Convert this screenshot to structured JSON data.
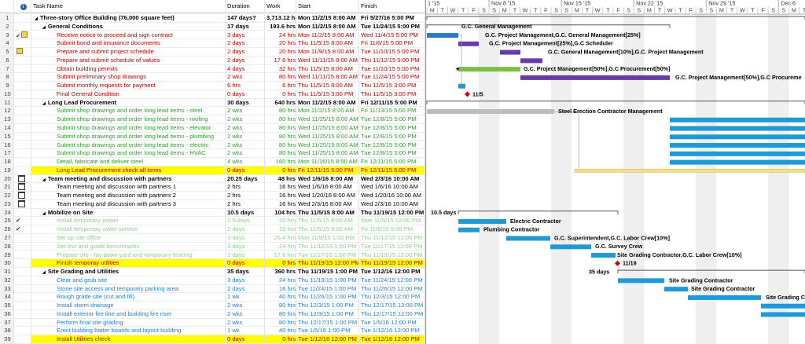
{
  "header": {
    "columns": [
      "Task Name",
      "Duration",
      "Work",
      "Start",
      "Finish"
    ]
  },
  "timescale": {
    "weeks": [
      "1 '15",
      "Nov 8 '15",
      "Nov 15 '15",
      "Nov 22 '15",
      "Nov 29 '15",
      "Dec 6"
    ],
    "days": [
      "M",
      "T",
      "W",
      "T",
      "F",
      "S",
      "S"
    ]
  },
  "rows": [
    {
      "id": "1",
      "name": "Three-story Office Building (76,000 square feet)",
      "duration": "147 days?",
      "work": "3,713.12 hrs",
      "start": "Mon 11/2/15 8:00 AM",
      "finish": "Fri 5/27/16 5:00 PM"
    },
    {
      "id": "2",
      "name": "General Conditions",
      "duration": "17 days",
      "work": "193.6 hrs",
      "start": "Mon 11/2/15 8:00 AM",
      "finish": "Tue 11/24/15 5:00 PM",
      "bar_label": "G.C. General Management"
    },
    {
      "id": "3",
      "name": "Receive notice to proceed and sign contract",
      "duration": "3 days",
      "work": "24 hrs",
      "start": "Mon 11/2/15 8:00 AM",
      "finish": "Wed 11/4/15 5:00 PM",
      "bar_label": "G.C. Project Management,G.C. General  Management[25%]"
    },
    {
      "id": "4",
      "name": "Submit bond and insurance documents",
      "duration": "2 days",
      "work": "20 hrs",
      "start": "Thu 11/5/15 8:00 AM",
      "finish": "Fri 11/6/15 5:00 PM",
      "bar_label": "G.C. Project Management[25%],G.C Scheduler"
    },
    {
      "id": "5",
      "name": "Prepare and submit project schedule",
      "duration": "2 days",
      "work": "20 hrs",
      "start": "Mon 11/9/15 8:00 AM",
      "finish": "Tue 11/10/15 5:00 PM",
      "bar_label": "G.C. General Management[10%],G.C. Project Management"
    },
    {
      "id": "6",
      "name": "Prepare and submit schedule of values",
      "duration": "2 days",
      "work": "17.6 hrs",
      "start": "Wed 11/11/15 8:00 AM",
      "finish": "Thu 11/12/15 5:00 PM"
    },
    {
      "id": "7",
      "name": "Obtain building permits",
      "duration": "4 days",
      "work": "32 hrs",
      "start": "Thu 11/5/15 8:00 AM",
      "finish": "Tue 11/10/15 5:00 PM",
      "bar_label": "G.C. Project Management[50%],G.C Procurement[50%]"
    },
    {
      "id": "8",
      "name": "Submit preliminary shop drawings",
      "duration": "2 wks",
      "work": "80 hrs",
      "start": "Wed 11/11/15 8:00 AM",
      "finish": "Tue 11/24/15 5:00 PM",
      "bar_label": "G.C. Project Management[50%],G.C Procureme"
    },
    {
      "id": "9",
      "name": "Submit monthly requests for payment",
      "duration": "6 hrs",
      "work": "6 hrs",
      "start": "Thu 11/5/15 8:00 AM",
      "finish": "Thu 11/5/15 3:00 PM"
    },
    {
      "id": "10",
      "name": "Final General Condition",
      "duration": "0 days",
      "work": "0 hrs",
      "start": "Thu 11/5/15 3:00 PM",
      "finish": "Thu 11/5/15 3:00 PM",
      "bar_label": "11/5"
    },
    {
      "id": "11",
      "name": "Long Lead Procurement",
      "duration": "30 days",
      "work": "640 hrs",
      "start": "Mon 11/2/15 8:00 AM",
      "finish": "Fri 12/11/15 5:00 PM"
    },
    {
      "id": "12",
      "name": "Submit shop drawings and order long lead items - steel",
      "duration": "2 wks",
      "work": "80 hrs",
      "start": "Mon 11/2/15 8:00 AM",
      "finish": "Fri 11/13/15 5:00 PM",
      "bar_label": "Steel Erection Contractor Management"
    },
    {
      "id": "13",
      "name": "Submit shop drawings and order long lead items - roofing",
      "duration": "2 wks",
      "work": "80 hrs",
      "start": "Wed 11/25/15 8:00 AM",
      "finish": "Tue 12/8/15 5:00 PM"
    },
    {
      "id": "14",
      "name": "Submit shop drawings and order long lead items - elevator",
      "duration": "2 wks",
      "work": "80 hrs",
      "start": "Wed 11/25/15 8:00 AM",
      "finish": "Tue 12/8/15 5:00 PM"
    },
    {
      "id": "15",
      "name": "Submit shop drawings and order long lead items - plumbing",
      "duration": "2 wks",
      "work": "80 hrs",
      "start": "Wed 11/25/15 8:00 AM",
      "finish": "Tue 12/8/15 5:00 PM"
    },
    {
      "id": "16",
      "name": "Submit shop drawings and order long lead items - electric",
      "duration": "2 wks",
      "work": "80 hrs",
      "start": "Wed 11/25/15 8:00 AM",
      "finish": "Tue 12/8/15 5:00 PM"
    },
    {
      "id": "17",
      "name": "Submit shop drawings and order long lead items - HVAC",
      "duration": "2 wks",
      "work": "80 hrs",
      "start": "Wed 11/25/15 8:00 AM",
      "finish": "Tue 12/8/15 5:00 PM"
    },
    {
      "id": "18",
      "name": "Detail, fabricate and deliver steel",
      "duration": "4 wks",
      "work": "160 hrs",
      "start": "Mon 11/16/15 8:00 AM",
      "finish": "Fri 12/11/15 5:00 PM"
    },
    {
      "id": "19",
      "name": "Long Lead Procurement check all items",
      "duration": "0 days",
      "work": "0 hrs",
      "start": "Fri 12/11/15 5:00 PM",
      "finish": "Fri 12/11/15 5:00 PM"
    },
    {
      "id": "20",
      "name": "Team meeting and discussion with partners",
      "duration": "20.25 days",
      "work": "48 hrs",
      "start": "Wed 1/6/16 8:00 AM",
      "finish": "Wed 2/3/16 10:00 AM"
    },
    {
      "id": "21",
      "name": "Team meeting and discussion with partners 1",
      "duration": "2 hrs",
      "work": "16 hrs",
      "start": "Wed 1/6/16 8:00 AM",
      "finish": "Wed 1/6/16 10:00 AM"
    },
    {
      "id": "22",
      "name": "Team meeting and discussion with partners 2",
      "duration": "2 hrs",
      "work": "16 hrs",
      "start": "Wed 1/20/16 8:00 AM",
      "finish": "Wed 1/20/16 10:00 AM"
    },
    {
      "id": "23",
      "name": "Team meeting and discussion with partners 3",
      "duration": "2 hrs",
      "work": "16 hrs",
      "start": "Wed 2/3/16 8:00 AM",
      "finish": "Wed 2/3/16 10:00 AM"
    },
    {
      "id": "24",
      "name": "Mobilize on Site",
      "duration": "10.5 days",
      "work": "104 hrs",
      "start": "Thu 11/5/15 8:00 AM",
      "finish": "Thu 11/19/15 12:00 PM",
      "bar_label": "10.5 days"
    },
    {
      "id": "25",
      "name": "Install temporary power",
      "duration": "2.5 days",
      "work": "20 hrs",
      "start": "Thu 11/5/15 8:00 AM",
      "finish": "Mon 11/9/15 12:00 PM",
      "bar_label": "Electric Contractor"
    },
    {
      "id": "26",
      "name": "Install temporary water service",
      "duration": "2 days",
      "work": "16 hrs",
      "start": "Thu 11/5/15 8:00 AM",
      "finish": "Fri 11/6/15 5:00 PM",
      "bar_label": "Plumbing Contractor"
    },
    {
      "id": "27",
      "name": "Set up site office",
      "duration": "3 days",
      "work": "26.4 hrs",
      "start": "Mon 11/9/15 1:00 PM",
      "finish": "Thu 11/12/15 12:00 PM",
      "bar_label": "G.C. Superintendent,G.C. Labor Crew[10%]"
    },
    {
      "id": "28",
      "name": "Set line and grade benchmarks",
      "duration": "3 days",
      "work": "24 hrs",
      "start": "Thu 11/12/15 1:00 PM",
      "finish": "Tue 11/17/15 12:00 PM",
      "bar_label": "G.C. Survey Crew"
    },
    {
      "id": "29",
      "name": "Prepare site - lay down yard and temporary fencing",
      "duration": "2 days",
      "work": "17.6 hrs",
      "start": "Tue 11/17/15 1:00 PM",
      "finish": "Thu 11/19/15 12:00 PM",
      "bar_label": "Site Grading Contractor,G.C. Labor Crew[10%]"
    },
    {
      "id": "30",
      "name": "Finish temporay utilities",
      "duration": "0 days",
      "work": "0 hrs",
      "start": "Thu 11/19/15 12:00 PM",
      "finish": "Thu 11/19/15 12:00 PM",
      "bar_label": "11/19"
    },
    {
      "id": "31",
      "name": "Site Grading and Utilities",
      "duration": "35 days",
      "work": "360 hrs",
      "start": "Thu 11/19/15 1:00 PM",
      "finish": "Tue 1/12/16 12:00 PM",
      "bar_label": "35 days"
    },
    {
      "id": "32",
      "name": "Clear and grub site",
      "duration": "3 days",
      "work": "24 hrs",
      "start": "Thu 11/19/15 1:00 PM",
      "finish": "Tue 11/24/15 12:00 PM",
      "bar_label": "Site Grading Contractor"
    },
    {
      "id": "33",
      "name": "Stone site access and temporary parking area",
      "duration": "2 days",
      "work": "16 hrs",
      "start": "Tue 11/24/15 1:00 PM",
      "finish": "Thu 11/26/15 12:00 PM",
      "bar_label": "Site Grading Contractor"
    },
    {
      "id": "34",
      "name": "Rough grade site (cut and fill)",
      "duration": "1 wk",
      "work": "40 hrs",
      "start": "Thu 11/26/15 1:00 PM",
      "finish": "Thu 12/3/15 12:00 PM",
      "bar_label": "Site Grading C"
    },
    {
      "id": "35",
      "name": "Install storm drainage",
      "duration": "2 wks",
      "work": "80 hrs",
      "start": "Thu 12/3/15 1:00 PM",
      "finish": "Thu 12/17/15 12:00 PM"
    },
    {
      "id": "36",
      "name": "Install exterior fire line and building fire riser",
      "duration": "2 wks",
      "work": "80 hrs",
      "start": "Thu 12/3/15 1:00 PM",
      "finish": "Thu 12/17/15 12:00 PM"
    },
    {
      "id": "37",
      "name": "Perform final site grading",
      "duration": "2 wks",
      "work": "80 hrs",
      "start": "Thu 12/17/15 1:00 PM",
      "finish": "Tue 1/5/16 12:00 PM"
    },
    {
      "id": "38",
      "name": "Erect building batter boards and layout building",
      "duration": "1 wk",
      "work": "40 hrs",
      "start": "Tue 1/5/16 1:00 PM",
      "finish": "Tue 1/12/16 12:00 PM"
    },
    {
      "id": "39",
      "name": "Install Utilities check",
      "duration": "0 days",
      "work": "0 hrs",
      "start": "Tue 1/12/16 12:00 PM",
      "finish": "Tue 1/12/16 12:00 PM"
    }
  ]
}
